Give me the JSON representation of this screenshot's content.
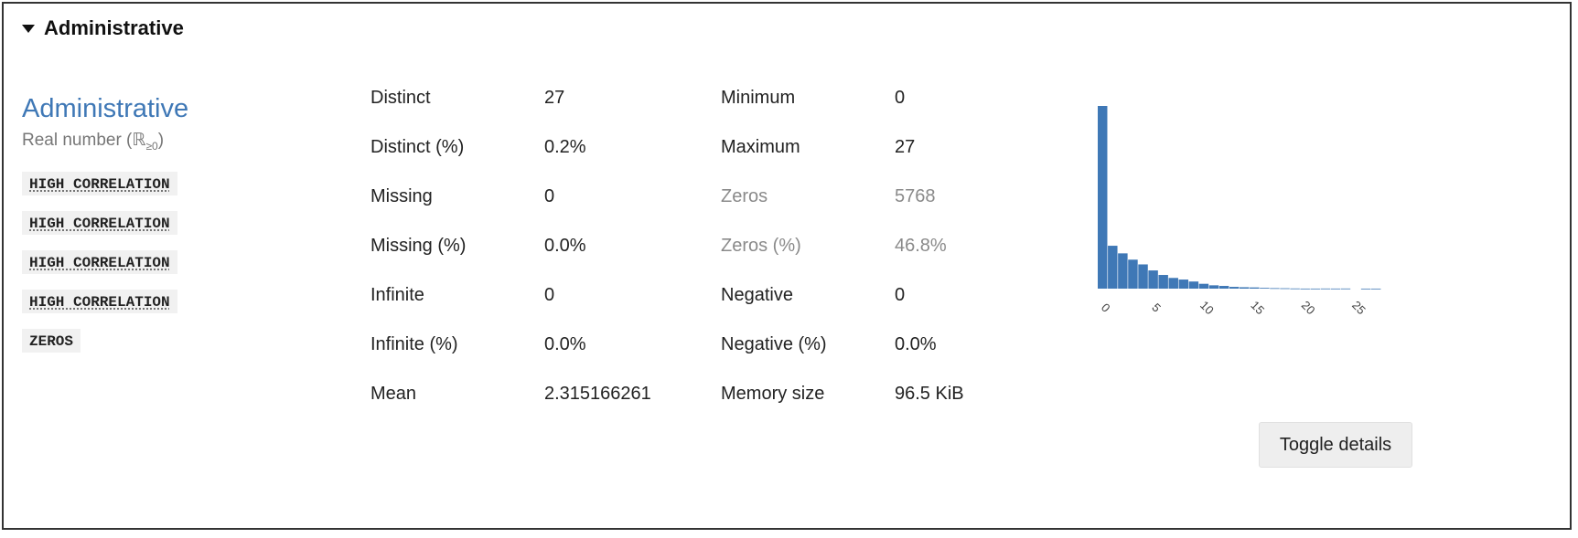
{
  "section": {
    "title": "Administrative"
  },
  "variable": {
    "name": "Administrative",
    "type_prefix": "Real number (",
    "type_symbol": "ℝ",
    "type_sub": "≥0",
    "type_suffix": ")"
  },
  "badges": [
    "HIGH CORRELATION",
    "HIGH CORRELATION",
    "HIGH CORRELATION",
    "HIGH CORRELATION",
    "ZEROS"
  ],
  "stats_left": [
    {
      "label": "Distinct",
      "value": "27"
    },
    {
      "label": "Distinct (%)",
      "value": "0.2%"
    },
    {
      "label": "Missing",
      "value": "0"
    },
    {
      "label": "Missing (%)",
      "value": "0.0%"
    },
    {
      "label": "Infinite",
      "value": "0"
    },
    {
      "label": "Infinite (%)",
      "value": "0.0%"
    },
    {
      "label": "Mean",
      "value": "2.315166261"
    }
  ],
  "stats_right": [
    {
      "label": "Minimum",
      "value": "0",
      "muted": false
    },
    {
      "label": "Maximum",
      "value": "27",
      "muted": false
    },
    {
      "label": "Zeros",
      "value": "5768",
      "muted": true
    },
    {
      "label": "Zeros (%)",
      "value": "46.8%",
      "muted": true
    },
    {
      "label": "Negative",
      "value": "0",
      "muted": false
    },
    {
      "label": "Negative (%)",
      "value": "0.0%",
      "muted": false
    },
    {
      "label": "Memory size",
      "value": "96.5 KiB",
      "muted": false
    }
  ],
  "toggle_button": {
    "label": "Toggle details"
  },
  "colors": {
    "accent": "#3f78b6",
    "bar": "#3f78b6",
    "muted": "#8a8a8a"
  },
  "chart_data": {
    "type": "bar",
    "x_ticks": [
      "0",
      "5",
      "10",
      "15",
      "20",
      "25"
    ],
    "xlim": [
      0,
      27
    ],
    "bins": [
      {
        "x": 0,
        "count": 5768
      },
      {
        "x": 1,
        "count": 1354
      },
      {
        "x": 2,
        "count": 1114
      },
      {
        "x": 3,
        "count": 915
      },
      {
        "x": 4,
        "count": 765
      },
      {
        "x": 5,
        "count": 575
      },
      {
        "x": 6,
        "count": 432
      },
      {
        "x": 7,
        "count": 338
      },
      {
        "x": 8,
        "count": 287
      },
      {
        "x": 9,
        "count": 225
      },
      {
        "x": 10,
        "count": 153
      },
      {
        "x": 11,
        "count": 105
      },
      {
        "x": 12,
        "count": 86
      },
      {
        "x": 13,
        "count": 56
      },
      {
        "x": 14,
        "count": 44
      },
      {
        "x": 15,
        "count": 38
      },
      {
        "x": 16,
        "count": 24
      },
      {
        "x": 17,
        "count": 16
      },
      {
        "x": 18,
        "count": 12
      },
      {
        "x": 19,
        "count": 6
      },
      {
        "x": 20,
        "count": 2
      },
      {
        "x": 21,
        "count": 2
      },
      {
        "x": 22,
        "count": 4
      },
      {
        "x": 23,
        "count": 3
      },
      {
        "x": 24,
        "count": 4
      },
      {
        "x": 26,
        "count": 1
      },
      {
        "x": 27,
        "count": 1
      }
    ]
  }
}
